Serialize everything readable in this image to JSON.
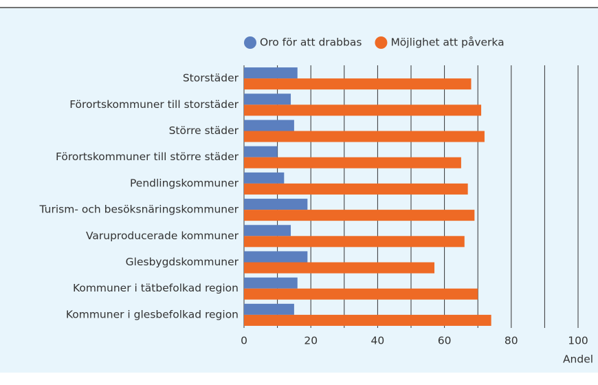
{
  "chart_data": {
    "type": "barh",
    "categories": [
      "Storstäder",
      "Förortskommuner till storstäder",
      "Större städer",
      "Förortskommuner till större städer",
      "Pendlingskommuner",
      "Turism- och besöksnäringskommuner",
      "Varuproducerade kommuner",
      "Glesbygdskommuner",
      "Kommuner i tätbefolkad region",
      "Kommuner i glesbefolkad region"
    ],
    "series": [
      {
        "name": "Oro för att drabbas",
        "color": "#5b7fbf",
        "values": [
          16,
          14,
          15,
          10,
          12,
          19,
          14,
          19,
          16,
          15
        ]
      },
      {
        "name": "Möjlighet att påverka",
        "color": "#ee6a25",
        "values": [
          68,
          71,
          72,
          65,
          67,
          69,
          66,
          57,
          70,
          74
        ]
      }
    ],
    "xlabel": "Andel",
    "xlim": [
      0,
      100
    ],
    "xticks": [
      0,
      20,
      40,
      60,
      80,
      100
    ],
    "xminor": [
      10,
      30,
      50,
      70,
      90
    ],
    "grid": true,
    "legend": "top"
  }
}
